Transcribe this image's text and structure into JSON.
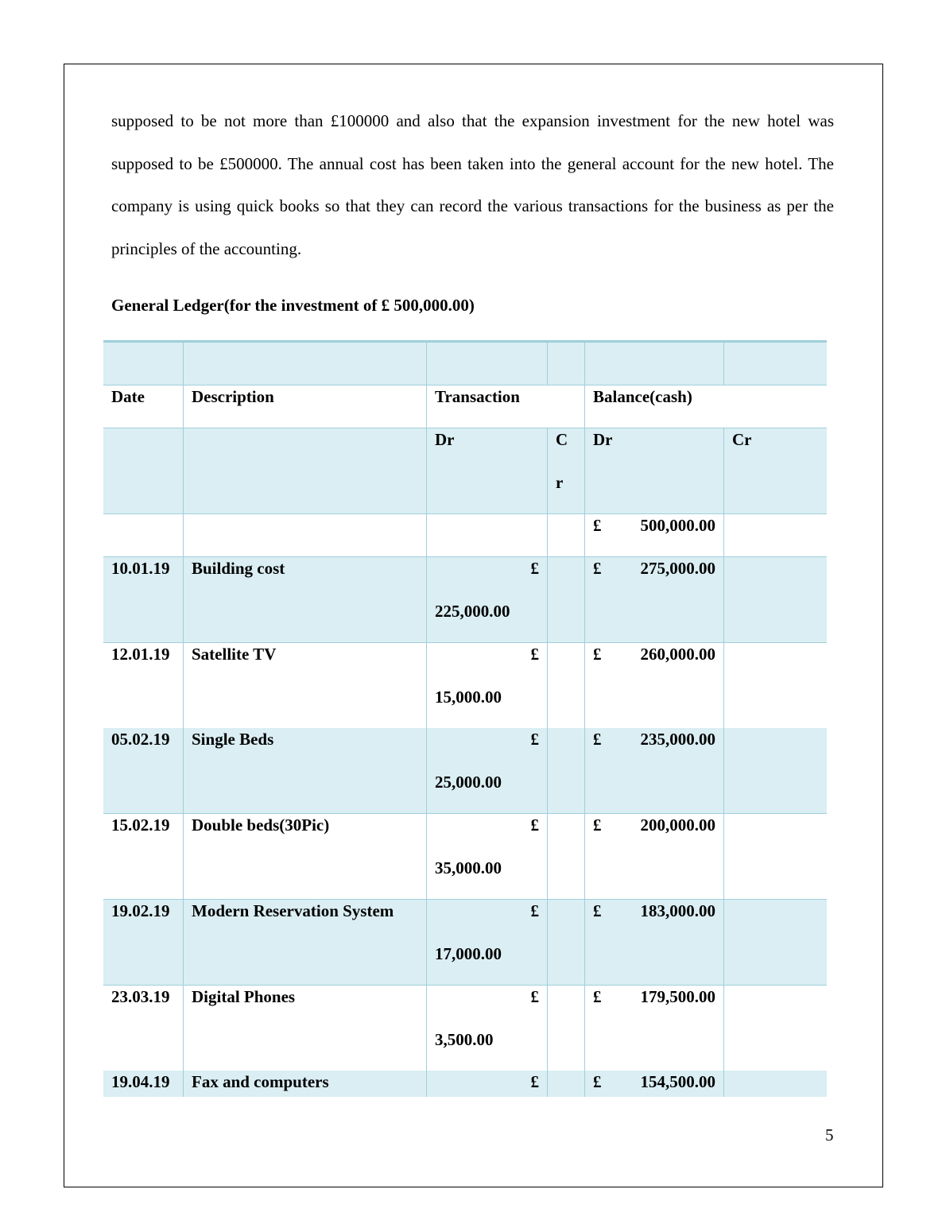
{
  "paragraph": "supposed to be not more than £100000 and also that the expansion investment for the new hotel was supposed to be £500000. The annual cost has been taken into the general account for the new hotel. The company is using quick books so that they can record the various transactions for the business as per the principles of the accounting.",
  "heading": "General Ledger(for the investment of £ 500,000.00)",
  "table": {
    "headers": {
      "date": "Date",
      "description": "Description",
      "transaction": "Transaction",
      "balance": "Balance(cash)"
    },
    "subheaders": {
      "tx_dr": "Dr",
      "tx_cr": "Cr",
      "bal_dr": "Dr",
      "bal_cr": "Cr"
    },
    "currency": "£",
    "opening_balance": "500,000.00",
    "rows": [
      {
        "date": "10.01.19",
        "description": "Building cost",
        "dr": "225,000.00",
        "balance": "275,000.00"
      },
      {
        "date": "12.01.19",
        "description": "Satellite TV",
        "dr": "15,000.00",
        "balance": "260,000.00"
      },
      {
        "date": "05.02.19",
        "description": "Single Beds",
        "dr": "25,000.00",
        "balance": "235,000.00"
      },
      {
        "date": "15.02.19",
        "description": "Double beds(30Pic)",
        "dr": "35,000.00",
        "balance": "200,000.00"
      },
      {
        "date": "19.02.19",
        "description": "Modern Reservation System",
        "dr": "17,000.00",
        "balance": "183,000.00"
      },
      {
        "date": "23.03.19",
        "description": "Digital Phones",
        "dr": "3,500.00",
        "balance": "179,500.00"
      },
      {
        "date": "19.04.19",
        "description": "Fax and computers",
        "dr": "",
        "balance": "154,500.00"
      }
    ]
  },
  "page_number": "5",
  "colors": {
    "shade": "#daeef3",
    "border": "#9fcfdc"
  }
}
